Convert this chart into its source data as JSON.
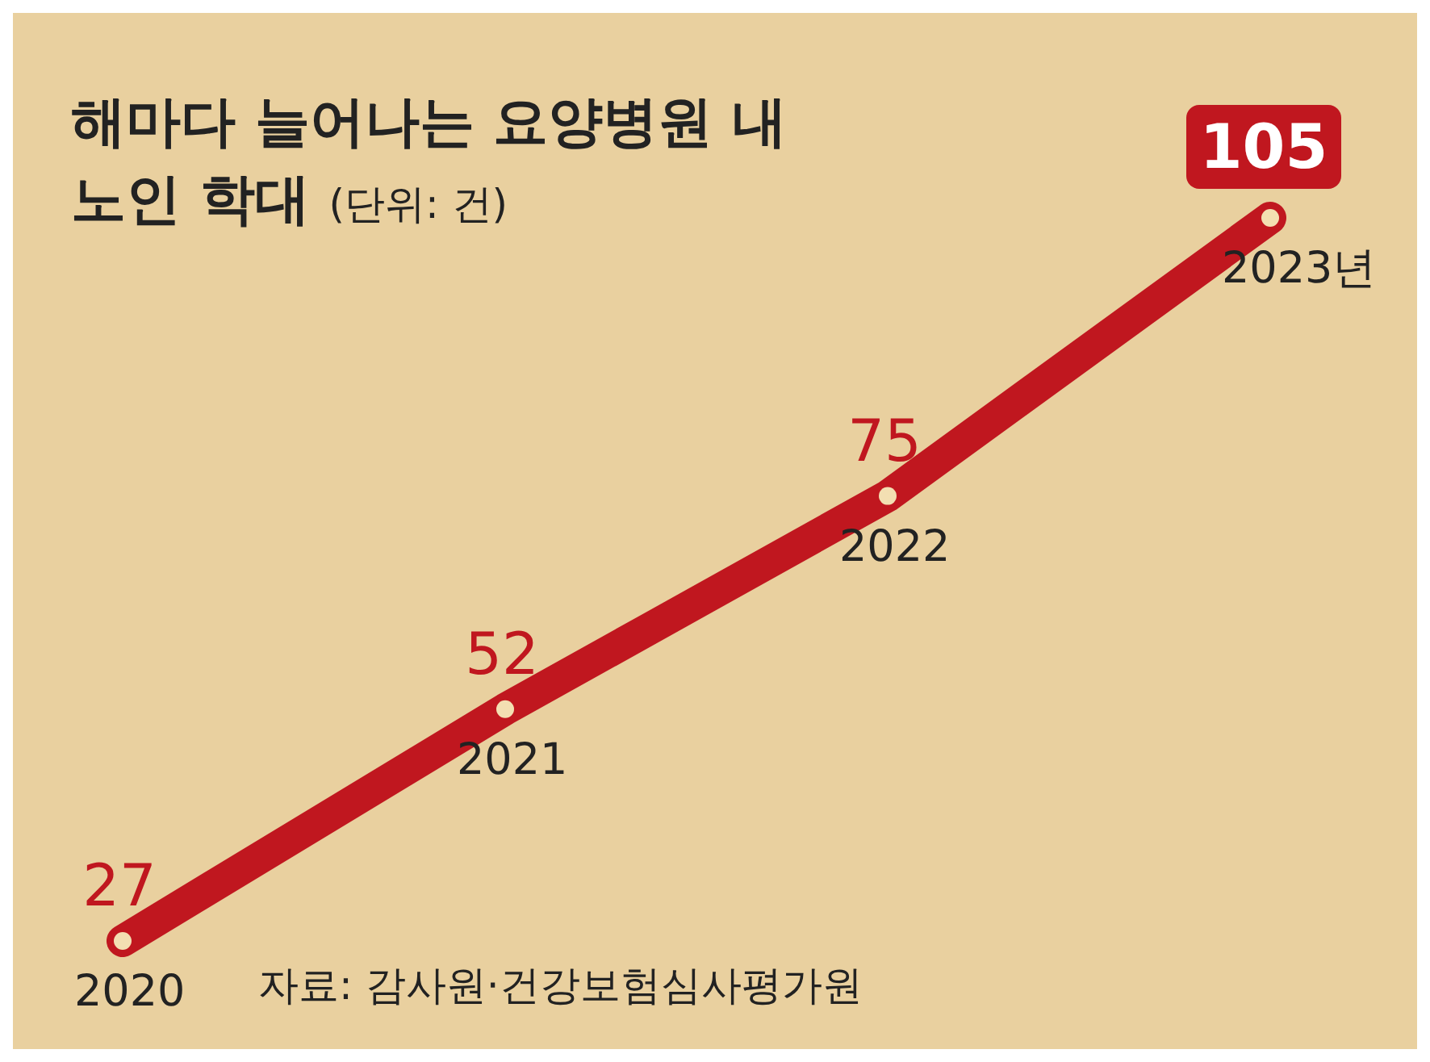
{
  "chart_data": {
    "type": "line",
    "title": "해마다 늘어나는 요양병원 내 노인 학대",
    "subtitle": "(단위: 건)",
    "categories": [
      "2020",
      "2021",
      "2022",
      "2023년"
    ],
    "series": [
      {
        "color": "#c0171f",
        "values": [
          27,
          52,
          75,
          105
        ]
      }
    ],
    "data_labels": true,
    "marker": "circle",
    "line_style": "solid",
    "tick_labels": "x",
    "annotations": [
      "자료: 감사원·건강보험심사평가원"
    ]
  }
}
